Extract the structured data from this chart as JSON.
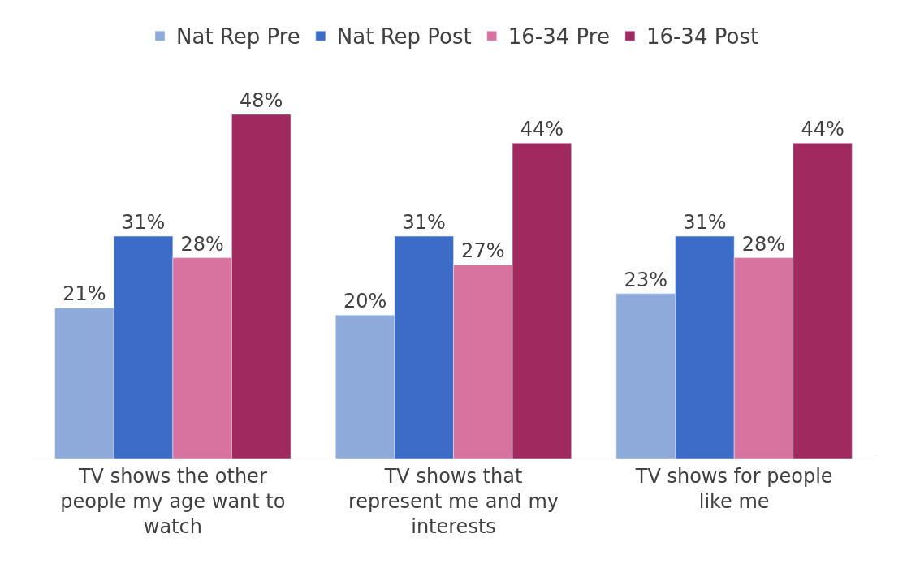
{
  "chart_data": {
    "type": "bar",
    "categories": [
      "TV shows the other people my age want to watch",
      "TV shows that represent me and my interests",
      "TV shows for people like me"
    ],
    "series": [
      {
        "name": "Nat Rep Pre",
        "color": "#8eaadb",
        "values": [
          21,
          20,
          23
        ],
        "value_labels": [
          "21%",
          "20%",
          "23%"
        ]
      },
      {
        "name": "Nat Rep Post",
        "color": "#3b6cc8",
        "values": [
          31,
          31,
          31
        ],
        "value_labels": [
          "31%",
          "31%",
          "31%"
        ]
      },
      {
        "name": "16-34 Pre",
        "color": "#d8739f",
        "values": [
          28,
          27,
          28
        ],
        "value_labels": [
          "28%",
          "27%",
          "28%"
        ]
      },
      {
        "name": "16-34 Post",
        "color": "#a02a5f",
        "values": [
          48,
          44,
          44
        ],
        "value_labels": [
          "48%",
          "44%",
          "44%"
        ]
      }
    ],
    "legend": "top"
  }
}
